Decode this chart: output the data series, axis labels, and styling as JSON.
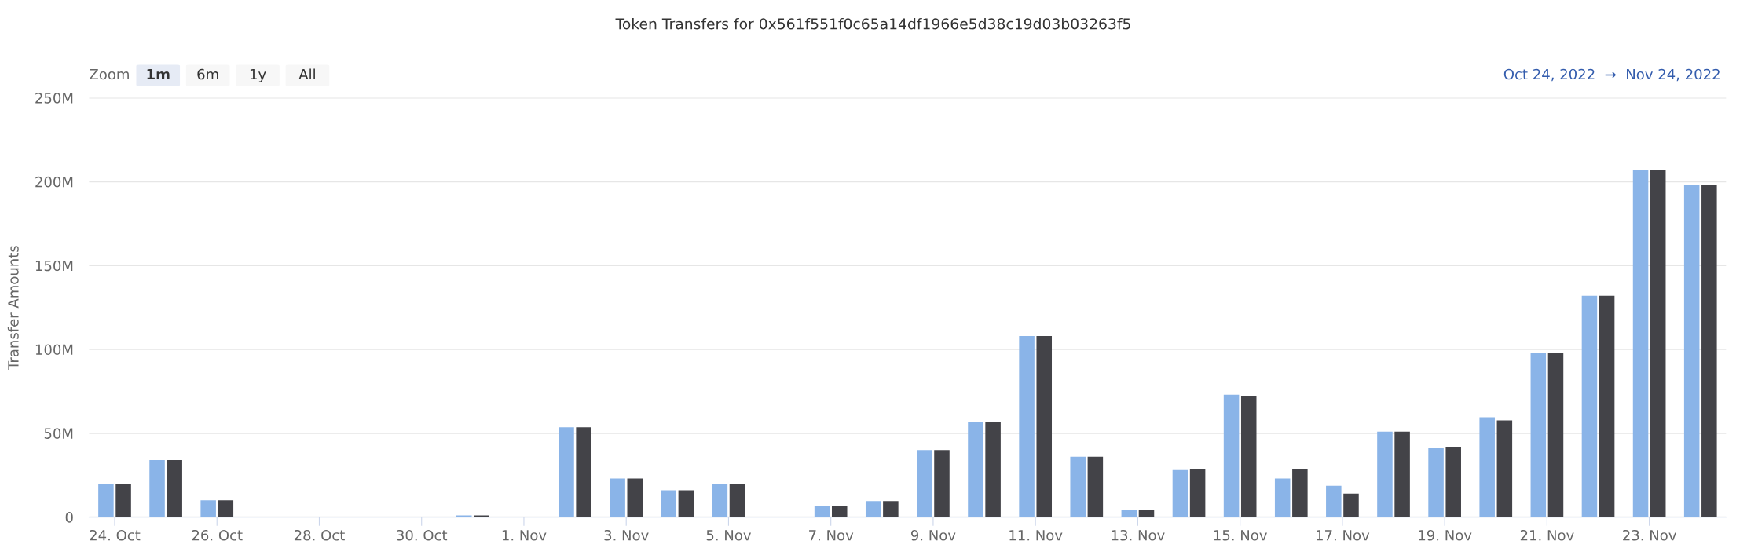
{
  "chart_data": {
    "type": "bar",
    "title": "Token Transfers for 0x561f551f0c65a14df1966e5d38c19d03b03263f5",
    "ylabel": "Transfer Amounts",
    "annotations": [
      "Zoom",
      "1m",
      "6m",
      "1y",
      "All",
      "Oct 24, 2022  →  Nov 24, 2022"
    ],
    "x": [
      "2022-10-24",
      "2022-10-25",
      "2022-10-26",
      "2022-10-27",
      "2022-10-28",
      "2022-10-29",
      "2022-10-30",
      "2022-10-31",
      "2022-11-01",
      "2022-11-02",
      "2022-11-03",
      "2022-11-04",
      "2022-11-05",
      "2022-11-06",
      "2022-11-07",
      "2022-11-08",
      "2022-11-09",
      "2022-11-10",
      "2022-11-11",
      "2022-11-12",
      "2022-11-13",
      "2022-11-14",
      "2022-11-15",
      "2022-11-16",
      "2022-11-17",
      "2022-11-18",
      "2022-11-19",
      "2022-11-20",
      "2022-11-21",
      "2022-11-22",
      "2022-11-23",
      "2022-11-24"
    ],
    "series": [
      {
        "color": "#8ab4e8",
        "values": [
          20,
          34,
          10,
          0,
          0,
          0,
          0,
          1,
          0,
          53.5,
          23,
          16,
          20,
          0,
          6.5,
          9.5,
          40,
          56.5,
          108,
          36,
          4,
          28,
          73,
          23,
          18.7,
          51,
          41,
          59.5,
          98,
          132,
          207,
          198
        ]
      },
      {
        "color": "#434348",
        "values": [
          20,
          34,
          10,
          0,
          0,
          0,
          0,
          1,
          0,
          53.5,
          23,
          16,
          20,
          0,
          6.5,
          9.5,
          40,
          56.5,
          108,
          36,
          4,
          28.6,
          72,
          28.6,
          14,
          51,
          42,
          57.6,
          98,
          132,
          207,
          198
        ]
      }
    ],
    "xlim": [
      "2022-10-23T12:00",
      "2022-11-24T12:00"
    ],
    "xticks": [
      {
        "value": "2022-10-24",
        "label": "24. Oct"
      },
      {
        "value": "2022-10-26",
        "label": "26. Oct"
      },
      {
        "value": "2022-10-28",
        "label": "28. Oct"
      },
      {
        "value": "2022-10-30",
        "label": "30. Oct"
      },
      {
        "value": "2022-11-01",
        "label": "1. Nov"
      },
      {
        "value": "2022-11-03",
        "label": "3. Nov"
      },
      {
        "value": "2022-11-05",
        "label": "5. Nov"
      },
      {
        "value": "2022-11-07",
        "label": "7. Nov"
      },
      {
        "value": "2022-11-09",
        "label": "9. Nov"
      },
      {
        "value": "2022-11-11",
        "label": "11. Nov"
      },
      {
        "value": "2022-11-13",
        "label": "13. Nov"
      },
      {
        "value": "2022-11-15",
        "label": "15. Nov"
      },
      {
        "value": "2022-11-17",
        "label": "17. Nov"
      },
      {
        "value": "2022-11-19",
        "label": "19. Nov"
      },
      {
        "value": "2022-11-21",
        "label": "21. Nov"
      },
      {
        "value": "2022-11-23",
        "label": "23. Nov"
      }
    ],
    "ylim": [
      0,
      250
    ],
    "yticks": [
      {
        "value": 0,
        "label": "0"
      },
      {
        "value": 50,
        "label": "50M"
      },
      {
        "value": 100,
        "label": "100M"
      },
      {
        "value": 150,
        "label": "150M"
      },
      {
        "value": 200,
        "label": "200M"
      },
      {
        "value": 250,
        "label": "250M"
      }
    ],
    "grid": "y"
  }
}
